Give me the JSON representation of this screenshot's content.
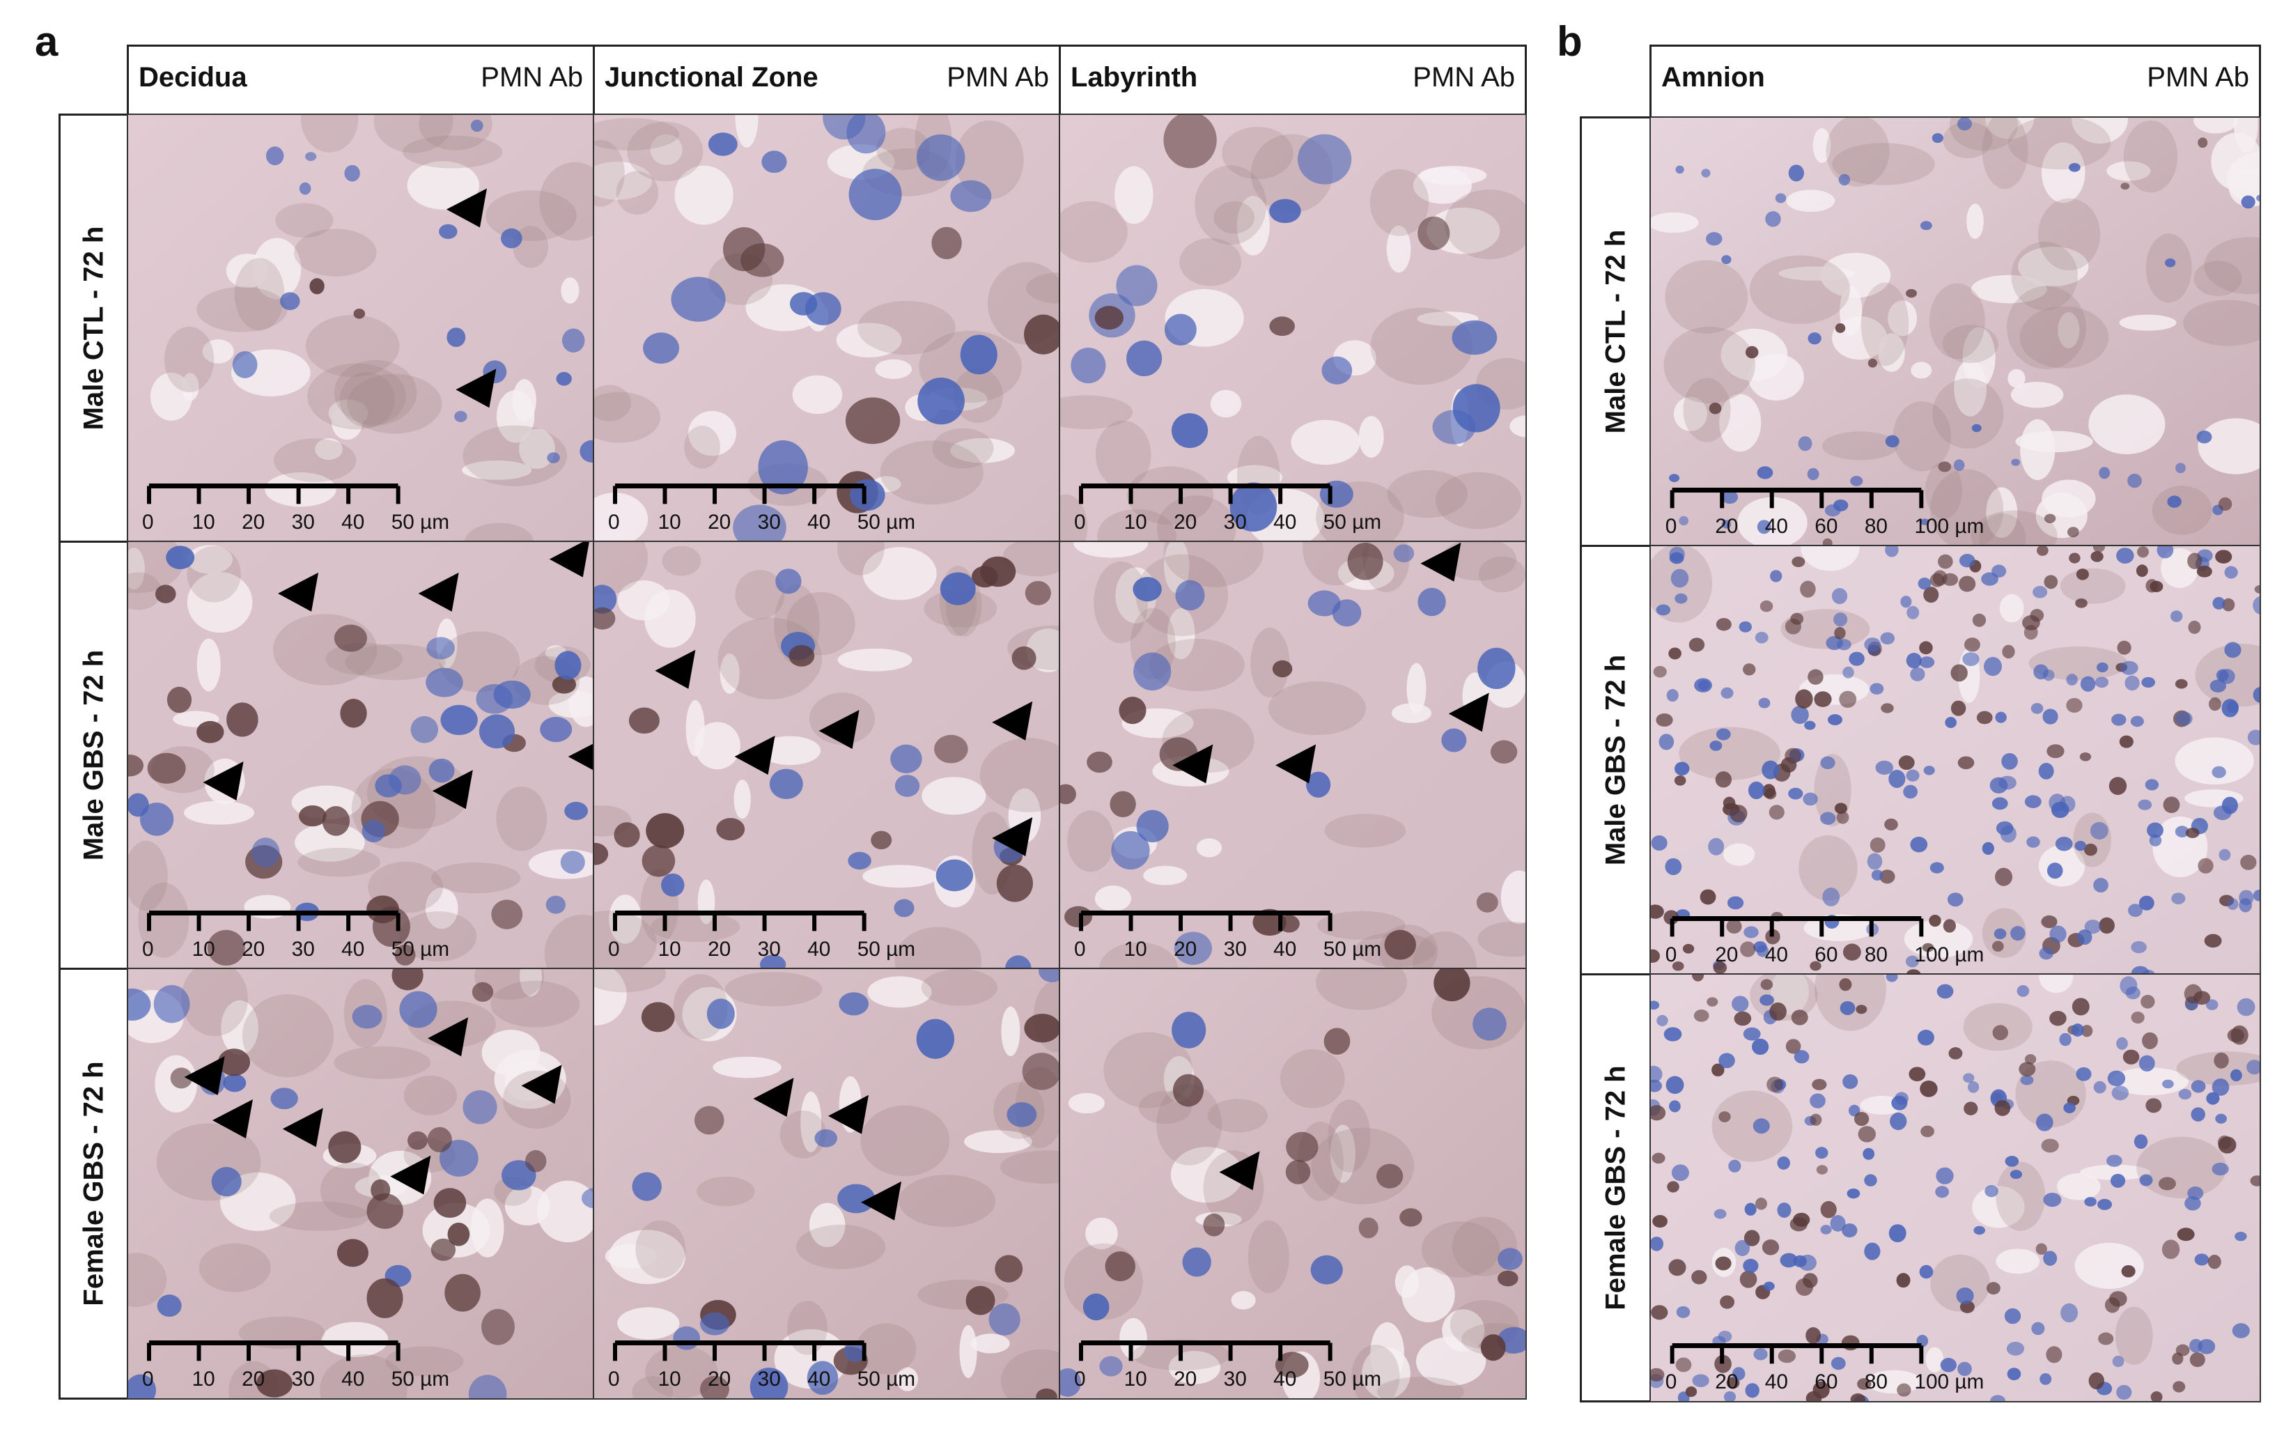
{
  "panel_a": {
    "letter": "a",
    "columns": [
      {
        "title": "Decidua",
        "antibody": "PMN Ab"
      },
      {
        "title": "Junctional Zone",
        "antibody": "PMN Ab"
      },
      {
        "title": "Labyrinth",
        "antibody": "PMN Ab"
      }
    ],
    "rows": [
      "Male CTL - 72 h",
      "Male GBS - 72 h",
      "Female GBS - 72 h"
    ],
    "scale_ticks": [
      "0",
      "10",
      "20",
      "30",
      "40",
      "50 µm"
    ]
  },
  "panel_b": {
    "letter": "b",
    "columns": [
      {
        "title": "Amnion",
        "antibody": "PMN Ab"
      }
    ],
    "rows": [
      "Male CTL - 72 h",
      "Male GBS - 72 h",
      "Female GBS - 72 h"
    ],
    "scale_ticks": [
      "0",
      "20",
      "40",
      "60",
      "80",
      "100 µm"
    ]
  },
  "colors": {
    "tissue_pink": "#d9c3cc",
    "tissue_brown": "#9c7f80",
    "hematoxylin_blue": "#4a64b8",
    "pmn_brown": "#5a3a3a",
    "border": "#222222"
  },
  "icons": [
    "arrowhead-marker-icon"
  ]
}
